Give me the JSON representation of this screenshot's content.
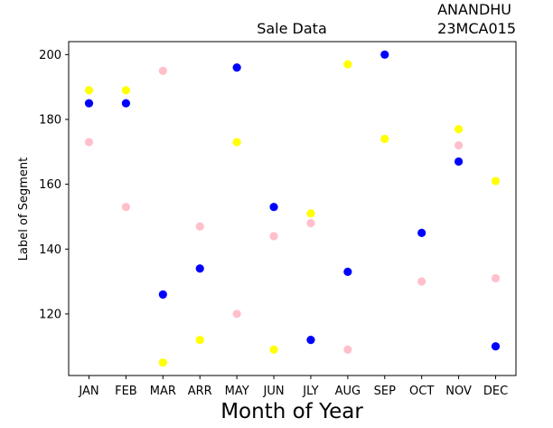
{
  "chart_data": {
    "type": "scatter",
    "title": "Sale Data",
    "corner_note": [
      "ANANDHU",
      "23MCA015"
    ],
    "xlabel": "Month of Year",
    "ylabel": "Label of Segment",
    "categories": [
      "JAN",
      "FEB",
      "MAR",
      "ARR",
      "MAY",
      "JUN",
      "JLY",
      "AUG",
      "SEP",
      "OCT",
      "NOV",
      "DEC"
    ],
    "ylim": [
      101,
      204
    ],
    "yticks": [
      120,
      140,
      160,
      180,
      200
    ],
    "grid": false,
    "legend": "none",
    "series": [
      {
        "color": "#ffff00",
        "values": [
          189,
          189,
          105,
          112,
          173,
          109,
          151,
          197,
          174,
          null,
          177,
          161
        ]
      },
      {
        "color": "#0000ff",
        "values": [
          185,
          185,
          126,
          134,
          196,
          153,
          112,
          133,
          200,
          145,
          167,
          110
        ]
      },
      {
        "color": "#ffc0cb",
        "values": [
          173,
          153,
          195,
          147,
          120,
          144,
          148,
          109,
          null,
          130,
          172,
          131
        ]
      }
    ]
  }
}
